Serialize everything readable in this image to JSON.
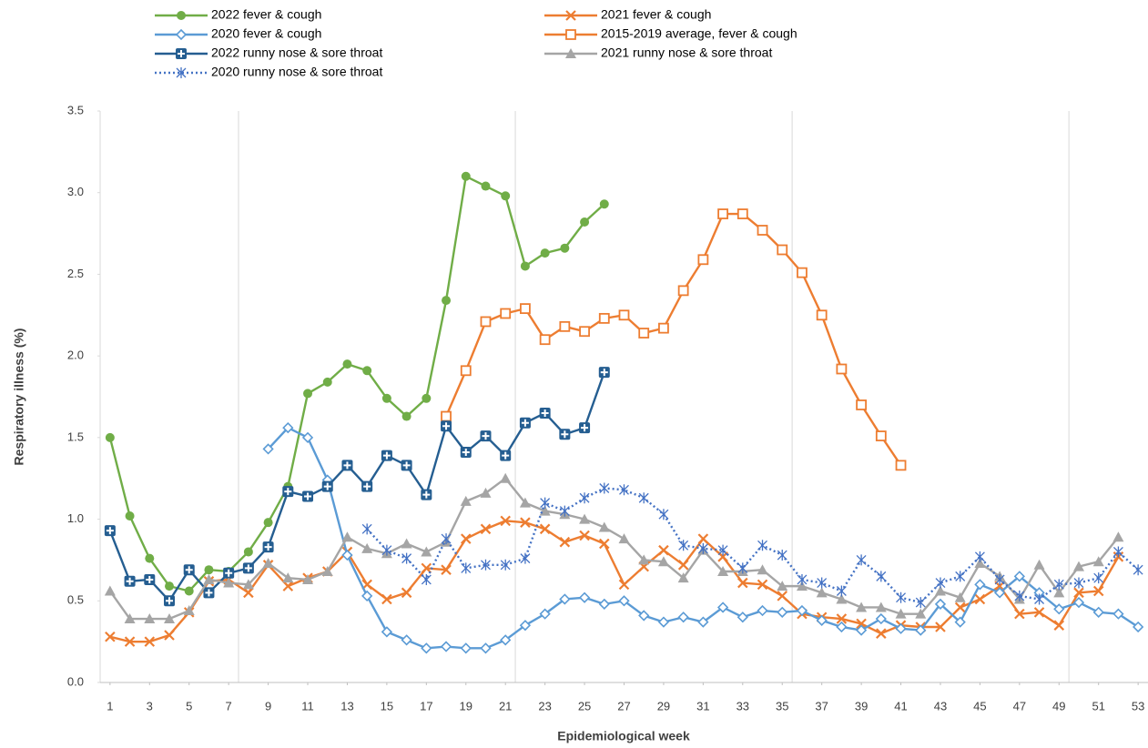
{
  "chart_data": {
    "type": "line",
    "x_label": "Epidemiological week",
    "y_label": "Respiratory illness (%)",
    "x": [
      1,
      2,
      3,
      4,
      5,
      6,
      7,
      8,
      9,
      10,
      11,
      12,
      13,
      14,
      15,
      16,
      17,
      18,
      19,
      20,
      21,
      22,
      23,
      24,
      25,
      26,
      27,
      28,
      29,
      30,
      31,
      32,
      33,
      34,
      35,
      36,
      37,
      38,
      39,
      40,
      41,
      42,
      43,
      44,
      45,
      46,
      47,
      48,
      49,
      50,
      51,
      52,
      53
    ],
    "xlim": [
      0.5,
      53.5
    ],
    "xticks": [
      1,
      3,
      5,
      7,
      9,
      11,
      13,
      15,
      17,
      19,
      21,
      23,
      25,
      27,
      29,
      31,
      33,
      35,
      37,
      39,
      41,
      43,
      45,
      47,
      49,
      51,
      53
    ],
    "xgrid": [
      7.5,
      21.5,
      35.5,
      49.5
    ],
    "ylim": [
      0,
      3.5
    ],
    "yticks": [
      {
        "value": 0,
        "label": "0.0"
      },
      0.5,
      {
        "value": 1,
        "label": "1.0"
      },
      1.5,
      {
        "value": 2,
        "label": "2.0"
      },
      2.5,
      {
        "value": 3,
        "label": "3.0"
      },
      3.5
    ],
    "series": [
      {
        "name": "2022 fever & cough",
        "color": "#70ad47",
        "marker": "circle",
        "values": [
          1.5,
          1.02,
          0.76,
          0.59,
          0.56,
          0.69,
          0.68,
          0.8,
          0.98,
          1.2,
          1.77,
          1.84,
          1.95,
          1.91,
          1.74,
          1.63,
          1.74,
          2.34,
          3.1,
          3.04,
          2.98,
          2.55,
          2.63,
          2.66,
          2.82,
          2.93,
          null,
          null,
          null,
          null,
          null,
          null,
          null,
          null,
          null,
          null,
          null,
          null,
          null,
          null,
          null,
          null,
          null,
          null,
          null,
          null,
          null,
          null,
          null,
          null,
          null,
          null,
          null
        ]
      },
      {
        "name": "2021 fever & cough",
        "color": "#ed7d31",
        "marker": "x",
        "values": [
          0.28,
          0.25,
          0.25,
          0.29,
          0.43,
          0.62,
          0.63,
          0.55,
          0.72,
          0.59,
          0.64,
          0.68,
          0.8,
          0.6,
          0.51,
          0.55,
          0.7,
          0.69,
          0.88,
          0.94,
          0.99,
          0.98,
          0.94,
          0.86,
          0.9,
          0.85,
          0.6,
          0.71,
          0.81,
          0.72,
          0.88,
          0.77,
          0.61,
          0.6,
          0.53,
          0.42,
          0.4,
          0.39,
          0.36,
          0.3,
          0.35,
          0.34,
          0.34,
          0.46,
          0.51,
          0.59,
          0.42,
          0.43,
          0.35,
          0.55,
          0.56,
          0.77,
          null
        ]
      },
      {
        "name": "2020 fever & cough",
        "color": "#5b9bd5",
        "marker": "diamond",
        "values": [
          null,
          null,
          null,
          null,
          null,
          null,
          null,
          null,
          1.43,
          1.56,
          1.5,
          1.24,
          0.78,
          0.53,
          0.31,
          0.26,
          0.21,
          0.22,
          0.21,
          0.21,
          0.26,
          0.35,
          0.42,
          0.51,
          0.52,
          0.48,
          0.5,
          0.41,
          0.37,
          0.4,
          0.37,
          0.46,
          0.4,
          0.44,
          0.43,
          0.44,
          0.38,
          0.34,
          0.32,
          0.39,
          0.33,
          0.32,
          0.48,
          0.37,
          0.6,
          0.55,
          0.65,
          0.55,
          0.45,
          0.49,
          0.43,
          0.42,
          0.34
        ]
      },
      {
        "name": "2015-2019 average, fever & cough",
        "color": "#ed7d31",
        "marker": "square",
        "values": [
          null,
          null,
          null,
          null,
          null,
          null,
          null,
          null,
          null,
          null,
          null,
          null,
          null,
          null,
          null,
          null,
          null,
          1.63,
          1.91,
          2.21,
          2.26,
          2.29,
          2.1,
          2.18,
          2.15,
          2.23,
          2.25,
          2.14,
          2.17,
          2.4,
          2.59,
          2.87,
          2.87,
          2.77,
          2.65,
          2.51,
          2.25,
          1.92,
          1.7,
          1.51,
          1.33,
          null,
          null,
          null,
          null,
          null,
          null,
          null,
          null,
          null,
          null,
          null,
          null
        ]
      },
      {
        "name": "2022 runny nose & sore throat",
        "color": "#255e91",
        "marker": "cross-square",
        "values": [
          0.93,
          0.62,
          0.63,
          0.5,
          0.69,
          0.55,
          0.67,
          0.7,
          0.83,
          1.17,
          1.14,
          1.2,
          1.33,
          1.2,
          1.39,
          1.33,
          1.15,
          1.57,
          1.41,
          1.51,
          1.39,
          1.59,
          1.65,
          1.52,
          1.56,
          1.9,
          null,
          null,
          null,
          null,
          null,
          null,
          null,
          null,
          null,
          null,
          null,
          null,
          null,
          null,
          null,
          null,
          null,
          null,
          null,
          null,
          null,
          null,
          null,
          null,
          null,
          null,
          null
        ]
      },
      {
        "name": "2021 runny nose & sore throat",
        "color": "#a5a5a5",
        "marker": "triangle",
        "values": [
          0.56,
          0.39,
          0.39,
          0.39,
          0.44,
          0.63,
          0.61,
          0.6,
          0.73,
          0.64,
          0.63,
          0.68,
          0.89,
          0.82,
          0.79,
          0.85,
          0.8,
          0.86,
          1.11,
          1.16,
          1.25,
          1.1,
          1.05,
          1.03,
          1.0,
          0.95,
          0.88,
          0.75,
          0.74,
          0.64,
          0.81,
          0.68,
          0.68,
          0.69,
          0.59,
          0.59,
          0.55,
          0.51,
          0.46,
          0.46,
          0.42,
          0.42,
          0.56,
          0.52,
          0.73,
          0.65,
          0.51,
          0.72,
          0.55,
          0.71,
          0.74,
          0.89,
          null
        ]
      },
      {
        "name": "2020 runny nose & sore throat",
        "color": "#4472c4",
        "marker": "asterisk",
        "dash": "dotted",
        "values": [
          null,
          null,
          null,
          null,
          null,
          null,
          null,
          null,
          null,
          null,
          null,
          null,
          null,
          0.94,
          0.81,
          0.76,
          0.63,
          0.88,
          0.7,
          0.72,
          0.72,
          0.76,
          1.1,
          1.05,
          1.13,
          1.19,
          1.18,
          1.13,
          1.03,
          0.84,
          0.82,
          0.81,
          0.7,
          0.84,
          0.78,
          0.63,
          0.61,
          0.56,
          0.75,
          0.65,
          0.52,
          0.49,
          0.61,
          0.65,
          0.77,
          0.63,
          0.53,
          0.51,
          0.6,
          0.61,
          0.64,
          0.8,
          0.69
        ]
      }
    ]
  }
}
